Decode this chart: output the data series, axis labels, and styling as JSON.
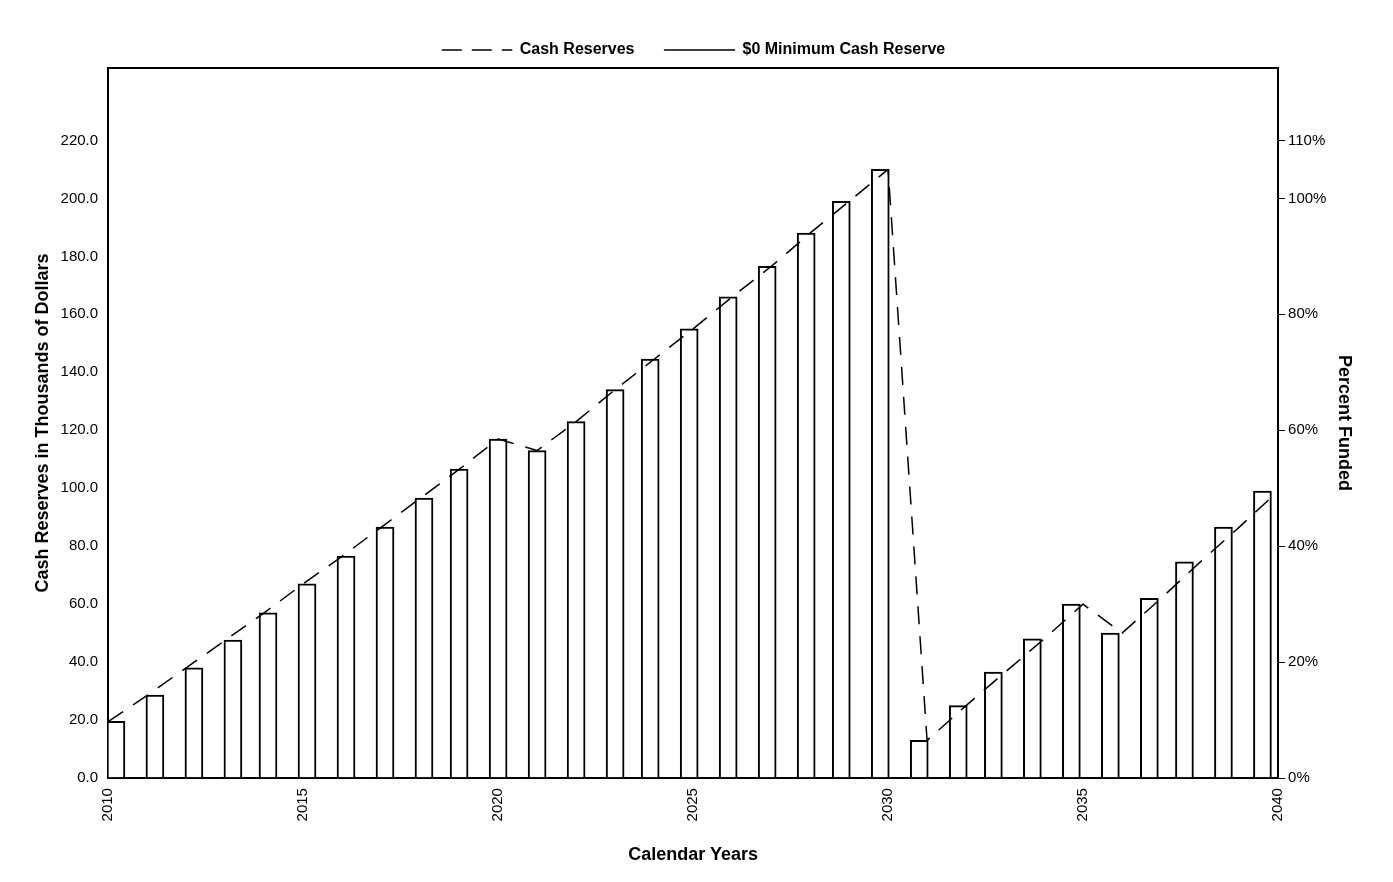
{
  "chart_data": {
    "type": "bar",
    "xlabel": "Calendar Years",
    "ylabel": "Cash Reserves in Thousands of Dollars",
    "y2label": "Percent Funded",
    "series": [
      {
        "axis": "y2",
        "color": "#ffffff",
        "x": [
          2010.2,
          2011.2,
          2012.2,
          2013.2,
          2014.1,
          2015.1,
          2016.1,
          2017.1,
          2018.1,
          2019.0,
          2020.0,
          2021.0,
          2022.0,
          2023.0,
          2023.9,
          2024.9,
          2025.9,
          2026.9,
          2027.9,
          2028.8,
          2029.8,
          2030.8,
          2031.8,
          2032.7,
          2033.7,
          2034.7,
          2035.7,
          2036.7,
          2037.6,
          2038.6,
          2039.6
        ],
        "values": [
          9.8,
          14.3,
          19,
          23.8,
          28.5,
          33.5,
          38.3,
          43.3,
          48.3,
          53.3,
          58.5,
          56.5,
          61.5,
          67,
          72.3,
          77.5,
          83,
          88.3,
          94,
          99.5,
          105,
          6.5,
          12.5,
          18.3,
          24,
          30,
          25,
          31,
          37.3,
          43.3,
          49.5
        ]
      },
      {
        "type": "line",
        "name": "Cash Reserves",
        "color": "#000000",
        "line_style": "dashed",
        "x": [
          2010,
          2011,
          2012,
          2013,
          2014,
          2015,
          2016,
          2017,
          2018,
          2019,
          2020,
          2021,
          2022,
          2023,
          2024,
          2025,
          2026,
          2027,
          2028,
          2029,
          2030,
          2031,
          2032,
          2033,
          2034,
          2035,
          2036,
          2037,
          2038,
          2039,
          2040
        ],
        "values": [
          19.5,
          28.5,
          38,
          47.5,
          57,
          67,
          76.5,
          86.5,
          96.5,
          106.5,
          117,
          113,
          123,
          134,
          144.5,
          155,
          166,
          176.5,
          188,
          199,
          210,
          13,
          25,
          36.5,
          48,
          60,
          50,
          62,
          74.5,
          86.5,
          99
        ]
      },
      {
        "type": "line",
        "name": "$0 Minimum Cash Reserve",
        "color": "#000000",
        "line_style": "solid",
        "x": [
          2010,
          2040
        ],
        "values": [
          0,
          0
        ]
      }
    ],
    "xlim": [
      2010,
      2040
    ],
    "xticks": [
      2010,
      2015,
      2020,
      2025,
      2030,
      2035,
      2040
    ],
    "ylim": [
      0,
      245
    ],
    "yticks": [
      {
        "value": 0,
        "label": "0.0"
      },
      {
        "value": 20,
        "label": "20.0"
      },
      {
        "value": 40,
        "label": "40.0"
      },
      {
        "value": 60,
        "label": "60.0"
      },
      {
        "value": 80,
        "label": "80.0"
      },
      {
        "value": 100,
        "label": "100.0"
      },
      {
        "value": 120,
        "label": "120.0"
      },
      {
        "value": 140,
        "label": "140.0"
      },
      {
        "value": 160,
        "label": "160.0"
      },
      {
        "value": 180,
        "label": "180.0"
      },
      {
        "value": 200,
        "label": "200.0"
      },
      {
        "value": 220,
        "label": "220.0"
      }
    ],
    "y2lim": [
      0,
      122.5
    ],
    "y2ticks": [
      {
        "value": 0,
        "label": "0%"
      },
      {
        "value": 20,
        "label": "20%"
      },
      {
        "value": 40,
        "label": "40%"
      },
      {
        "value": 60,
        "label": "60%"
      },
      {
        "value": 80,
        "label": "80%"
      },
      {
        "value": 100,
        "label": "100%"
      },
      {
        "value": 110,
        "label": "110%"
      }
    ],
    "grid": false,
    "legend": "top",
    "marker": "none"
  }
}
